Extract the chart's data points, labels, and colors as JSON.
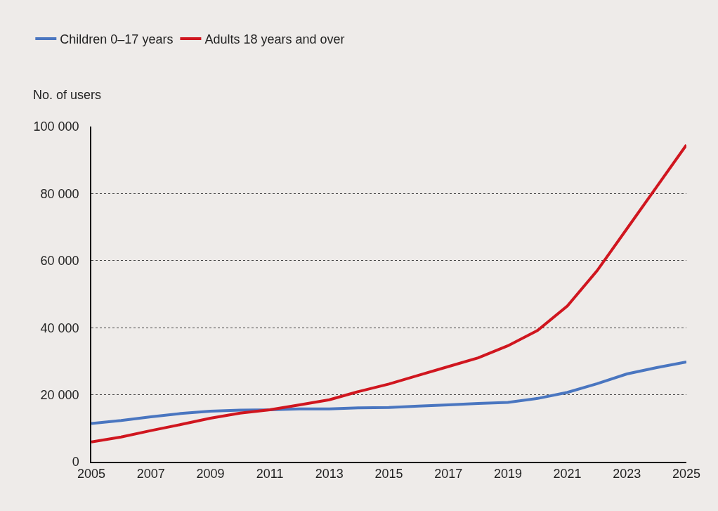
{
  "chart_data": {
    "type": "line",
    "ylabel": "No. of users",
    "x": [
      2005,
      2006,
      2007,
      2008,
      2009,
      2010,
      2011,
      2012,
      2013,
      2014,
      2015,
      2016,
      2017,
      2018,
      2019,
      2020,
      2021,
      2022,
      2023,
      2024,
      2025
    ],
    "series": [
      {
        "name": "Children 0–17 years",
        "color": "#4a76c0",
        "values": [
          11400,
          12300,
          13400,
          14400,
          15100,
          15400,
          15500,
          15800,
          15800,
          16100,
          16200,
          16600,
          17000,
          17400,
          17700,
          18900,
          20700,
          23300,
          26200,
          28100,
          29800
        ]
      },
      {
        "name": "Adults 18 years and over",
        "color": "#d0161f",
        "values": [
          5900,
          7400,
          9300,
          11100,
          13000,
          14500,
          15500,
          17000,
          18500,
          21000,
          23200,
          25800,
          28400,
          31000,
          34600,
          39200,
          46500,
          57000,
          69500,
          82000,
          94500
        ]
      }
    ],
    "xlim": [
      2005,
      2025
    ],
    "xticks": [
      2005,
      2007,
      2009,
      2011,
      2013,
      2015,
      2017,
      2019,
      2021,
      2023,
      2025
    ],
    "ylim": [
      0,
      100000
    ],
    "yticks": [
      {
        "value": 0,
        "label": "0"
      },
      {
        "value": 20000,
        "label": "20 000"
      },
      {
        "value": 40000,
        "label": "40 000"
      },
      {
        "value": 60000,
        "label": "60 000"
      },
      {
        "value": 80000,
        "label": "80 000"
      },
      {
        "value": 100000,
        "label": "100 000"
      }
    ],
    "grid": "y",
    "legend": "top left",
    "marker": "none",
    "line_style": "solid"
  }
}
